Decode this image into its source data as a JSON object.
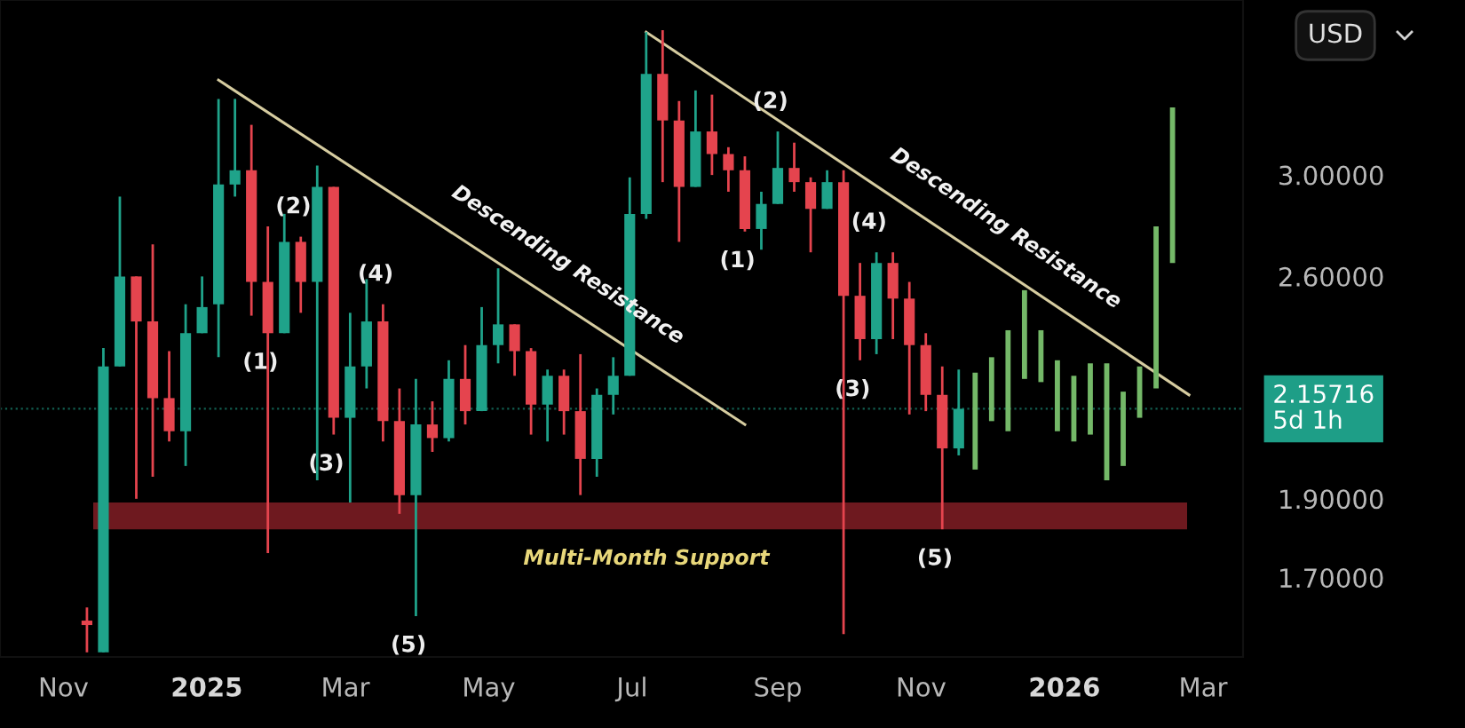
{
  "chart_data": {
    "type": "candlestick",
    "x": [
      "2024-11-11",
      "2024-11-18",
      "2024-11-25",
      "2024-12-02",
      "2024-12-09",
      "2024-12-16",
      "2024-12-23",
      "2024-12-30",
      "2025-01-06",
      "2025-01-13",
      "2025-01-20",
      "2025-01-27",
      "2025-02-03",
      "2025-02-10",
      "2025-02-17",
      "2025-02-24",
      "2025-03-03",
      "2025-03-10",
      "2025-03-17",
      "2025-03-24",
      "2025-03-31",
      "2025-04-07",
      "2025-04-14",
      "2025-04-21",
      "2025-04-28",
      "2025-05-05",
      "2025-05-12",
      "2025-05-19",
      "2025-05-26",
      "2025-06-02",
      "2025-06-09",
      "2025-06-16",
      "2025-06-23",
      "2025-06-30",
      "2025-07-07",
      "2025-07-14",
      "2025-07-21",
      "2025-07-28",
      "2025-08-04",
      "2025-08-11",
      "2025-08-18",
      "2025-08-25",
      "2025-09-01",
      "2025-09-08",
      "2025-09-15",
      "2025-09-22",
      "2025-09-29",
      "2025-10-06",
      "2025-10-13",
      "2025-10-20",
      "2025-10-27",
      "2025-11-03",
      "2025-11-10",
      "2025-11-17"
    ],
    "ohlc": [
      [
        1.6,
        1.63,
        1.53,
        1.59
      ],
      [
        1.53,
        2.35,
        1.53,
        2.29
      ],
      [
        2.29,
        2.91,
        2.29,
        2.6
      ],
      [
        2.6,
        2.6,
        1.9,
        2.44
      ],
      [
        2.44,
        2.72,
        1.96,
        2.19
      ],
      [
        2.19,
        2.34,
        2.06,
        2.09
      ],
      [
        2.09,
        2.5,
        1.99,
        2.4
      ],
      [
        2.4,
        2.6,
        2.4,
        2.49
      ],
      [
        2.5,
        3.34,
        2.32,
        2.96
      ],
      [
        2.96,
        3.34,
        2.91,
        3.02
      ],
      [
        3.02,
        3.22,
        2.46,
        2.58
      ],
      [
        2.58,
        2.79,
        1.76,
        2.4
      ],
      [
        2.4,
        2.84,
        2.4,
        2.73
      ],
      [
        2.73,
        2.75,
        2.47,
        2.58
      ],
      [
        2.58,
        3.04,
        1.95,
        2.95
      ],
      [
        2.95,
        2.95,
        2.08,
        2.13
      ],
      [
        2.13,
        2.47,
        1.89,
        2.29
      ],
      [
        2.29,
        2.59,
        2.22,
        2.44
      ],
      [
        2.44,
        2.5,
        2.06,
        2.12
      ],
      [
        2.12,
        2.22,
        1.86,
        1.91
      ],
      [
        1.91,
        2.25,
        1.61,
        2.11
      ],
      [
        2.11,
        2.18,
        2.03,
        2.07
      ],
      [
        2.07,
        2.31,
        2.06,
        2.25
      ],
      [
        2.25,
        2.36,
        2.11,
        2.15
      ],
      [
        2.15,
        2.49,
        2.15,
        2.36
      ],
      [
        2.36,
        2.63,
        2.3,
        2.43
      ],
      [
        2.43,
        2.43,
        2.26,
        2.34
      ],
      [
        2.34,
        2.35,
        2.08,
        2.17
      ],
      [
        2.17,
        2.28,
        2.06,
        2.26
      ],
      [
        2.26,
        2.28,
        2.08,
        2.15
      ],
      [
        2.15,
        2.33,
        1.91,
        2.01
      ],
      [
        2.01,
        2.22,
        1.96,
        2.2
      ],
      [
        2.2,
        2.32,
        2.14,
        2.26
      ],
      [
        2.26,
        2.99,
        2.26,
        2.84
      ],
      [
        2.84,
        3.67,
        2.82,
        3.46
      ],
      [
        3.46,
        3.68,
        2.97,
        3.24
      ],
      [
        3.24,
        3.33,
        2.73,
        2.95
      ],
      [
        2.95,
        3.38,
        2.95,
        3.19
      ],
      [
        3.19,
        3.36,
        3.0,
        3.09
      ],
      [
        3.09,
        3.12,
        2.93,
        3.02
      ],
      [
        3.02,
        3.08,
        2.77,
        2.78
      ],
      [
        2.78,
        2.93,
        2.7,
        2.88
      ],
      [
        2.88,
        3.19,
        2.88,
        3.03
      ],
      [
        3.03,
        3.14,
        2.93,
        2.97
      ],
      [
        2.97,
        2.99,
        2.69,
        2.86
      ],
      [
        2.86,
        3.02,
        2.86,
        2.97
      ],
      [
        2.97,
        3.02,
        1.57,
        2.53
      ],
      [
        2.53,
        2.65,
        2.31,
        2.38
      ],
      [
        2.38,
        2.69,
        2.33,
        2.65
      ],
      [
        2.65,
        2.69,
        2.38,
        2.52
      ],
      [
        2.52,
        2.58,
        2.14,
        2.36
      ],
      [
        2.36,
        2.4,
        2.15,
        2.2
      ],
      [
        2.2,
        2.29,
        1.82,
        2.04
      ],
      [
        2.04,
        2.28,
        2.02,
        2.15716
      ]
    ],
    "colors": [
      "#e5444e",
      "#1fa38a",
      "#1fa38a",
      "#e5444e",
      "#e5444e",
      "#e5444e",
      "#1fa38a",
      "#1fa38a",
      "#1fa38a",
      "#1fa38a",
      "#e5444e",
      "#e5444e",
      "#1fa38a",
      "#e5444e",
      "#1fa38a",
      "#e5444e",
      "#1fa38a",
      "#1fa38a",
      "#e5444e",
      "#e5444e",
      "#1fa38a",
      "#e5444e",
      "#1fa38a",
      "#e5444e",
      "#1fa38a",
      "#1fa38a",
      "#e5444e",
      "#e5444e",
      "#1fa38a",
      "#e5444e",
      "#e5444e",
      "#1fa38a",
      "#1fa38a",
      "#1fa38a",
      "#1fa38a",
      "#e5444e",
      "#e5444e",
      "#1fa38a",
      "#e5444e",
      "#e5444e",
      "#e5444e",
      "#1fa38a",
      "#1fa38a",
      "#e5444e",
      "#e5444e",
      "#1fa38a",
      "#e5444e",
      "#e5444e",
      "#1fa38a",
      "#e5444e",
      "#e5444e",
      "#e5444e",
      "#e5444e",
      "#1fa38a"
    ],
    "series": [
      {
        "type": "line",
        "name": "Descending Resistance",
        "color": "#d6ccA0",
        "x": [
          "2025-01-06",
          "2025-08-18"
        ],
        "values": [
          3.43,
          2.11
        ]
      },
      {
        "type": "line",
        "name": "Descending Resistance",
        "color": "#d6cca0",
        "x": [
          "2025-07-07",
          "2026-02-23"
        ],
        "values": [
          3.67,
          2.2
        ]
      },
      {
        "type": "bar",
        "color": "#74b868",
        "x": [
          "2025-11-24",
          "2025-12-01",
          "2025-12-08",
          "2025-12-15",
          "2025-12-22",
          "2025-12-29",
          "2026-01-05",
          "2026-01-12",
          "2026-01-19",
          "2026-01-26",
          "2026-02-02",
          "2026-02-09",
          "2026-02-16"
        ],
        "base": [
          1.98,
          2.12,
          2.09,
          2.25,
          2.24,
          2.09,
          2.06,
          2.08,
          1.95,
          1.99,
          2.13,
          2.22,
          2.65
        ],
        "values": [
          0.29,
          0.2,
          0.32,
          0.3,
          0.17,
          0.22,
          0.2,
          0.22,
          0.35,
          0.22,
          0.16,
          0.57,
          0.65
        ]
      }
    ],
    "log": "y",
    "xlim": [
      "2024-10-05",
      "2026-03-18"
    ],
    "xticks": [
      {
        "value": "2024-11-01",
        "label": "Nov"
      },
      {
        "value": "2025-01-01",
        "label": "2025"
      },
      {
        "value": "2025-03-01",
        "label": "Mar"
      },
      {
        "value": "2025-05-01",
        "label": "May"
      },
      {
        "value": "2025-07-01",
        "label": "Jul"
      },
      {
        "value": "2025-09-01",
        "label": "Sep"
      },
      {
        "value": "2025-11-01",
        "label": "Nov"
      },
      {
        "value": "2026-01-01",
        "label": "2026"
      },
      {
        "value": "2026-03-01",
        "label": "Mar"
      }
    ],
    "ylim": [
      1.52,
      3.84
    ],
    "yticks": [
      {
        "value": 1.7,
        "label": "1.70000"
      },
      {
        "value": 1.9,
        "label": "1.90000"
      },
      {
        "value": 2.6,
        "label": "2.60000"
      },
      {
        "value": 3.0,
        "label": "3.00000"
      }
    ],
    "bands": [
      {
        "axis": "y",
        "from": 1.82,
        "to": 1.89,
        "label": "Multi-Month Support",
        "color": "#7a1c22"
      }
    ],
    "ref_lines": [
      {
        "axis": "y",
        "value": 2.15716,
        "label": "2.15716\n5d 1h",
        "color": "#1e9e87",
        "line_style": "dotted"
      }
    ],
    "annotations": [
      {
        "text": "(1)",
        "x": "2025-01-27",
        "y": 2.4
      },
      {
        "text": "(2)",
        "x": "2025-02-10",
        "y": 2.75
      },
      {
        "text": "(3)",
        "x": "2025-02-24",
        "y": 2.08
      },
      {
        "text": "(4)",
        "x": "2025-03-17",
        "y": 2.5
      },
      {
        "text": "(5)",
        "x": "2025-03-31",
        "y": 1.61
      },
      {
        "text": "(1)",
        "x": "2025-08-18",
        "y": 2.77
      },
      {
        "text": "(2)",
        "x": "2025-09-01",
        "y": 3.19
      },
      {
        "text": "(3)",
        "x": "2025-10-06",
        "y": 2.31
      },
      {
        "text": "(4)",
        "x": "2025-10-13",
        "y": 2.69
      },
      {
        "text": "(5)",
        "x": "2025-11-10",
        "y": 1.82
      },
      "USD"
    ],
    "grid": false,
    "legend": false
  }
}
